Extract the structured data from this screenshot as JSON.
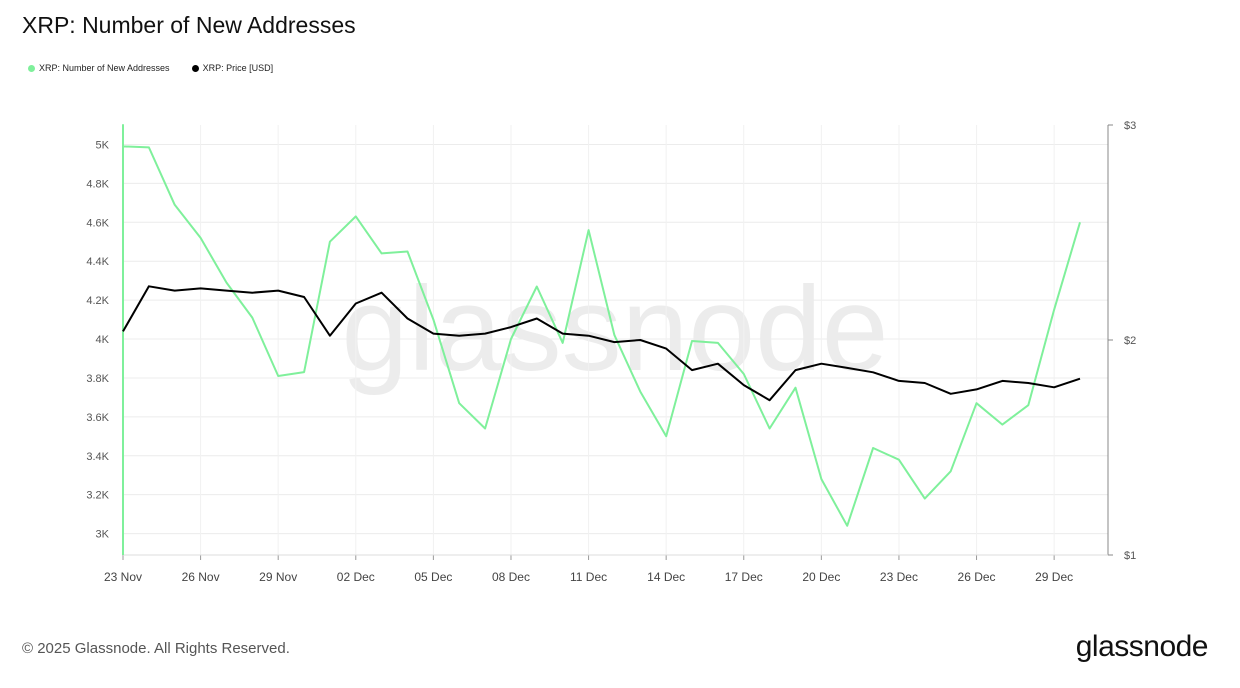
{
  "title": "XRP: Number of New Addresses",
  "legend": [
    {
      "label": "XRP: Number of New Addresses",
      "color": "#7ff09b"
    },
    {
      "label": "XRP: Price [USD]",
      "color": "#000000"
    }
  ],
  "footer": "© 2025 Glassnode. All Rights Reserved.",
  "brand": "glassnode",
  "watermark": "glassnode",
  "chart_data": {
    "type": "line",
    "x": [
      "23 Nov",
      "24 Nov",
      "25 Nov",
      "26 Nov",
      "27 Nov",
      "28 Nov",
      "29 Nov",
      "30 Nov",
      "01 Dec",
      "02 Dec",
      "03 Dec",
      "04 Dec",
      "05 Dec",
      "06 Dec",
      "07 Dec",
      "08 Dec",
      "09 Dec",
      "10 Dec",
      "11 Dec",
      "12 Dec",
      "13 Dec",
      "14 Dec",
      "15 Dec",
      "16 Dec",
      "17 Dec",
      "18 Dec",
      "19 Dec",
      "20 Dec",
      "21 Dec",
      "22 Dec",
      "23 Dec",
      "24 Dec",
      "25 Dec",
      "26 Dec",
      "27 Dec",
      "28 Dec",
      "29 Dec",
      "30 Dec"
    ],
    "xticks": [
      "23 Nov",
      "26 Nov",
      "29 Nov",
      "02 Dec",
      "05 Dec",
      "08 Dec",
      "11 Dec",
      "14 Dec",
      "17 Dec",
      "20 Dec",
      "23 Dec",
      "26 Dec",
      "29 Dec"
    ],
    "series": [
      {
        "name": "XRP: Number of New Addresses",
        "axis": "left",
        "color": "#7ff09b",
        "values": [
          4990,
          4985,
          4690,
          4520,
          4290,
          4110,
          3810,
          3830,
          4500,
          4630,
          4440,
          4450,
          4100,
          3670,
          3540,
          4000,
          4270,
          3980,
          4560,
          4020,
          3730,
          3500,
          3990,
          3980,
          3820,
          3540,
          3750,
          3280,
          3040,
          3440,
          3380,
          3180,
          3320,
          3670,
          3560,
          3660,
          4150,
          4600
        ]
      },
      {
        "name": "XRP: Price [USD]",
        "axis": "right",
        "color": "#000000",
        "values": [
          2.04,
          2.25,
          2.23,
          2.24,
          2.23,
          2.22,
          2.23,
          2.2,
          2.02,
          2.17,
          2.22,
          2.1,
          2.03,
          2.02,
          2.03,
          2.06,
          2.1,
          2.03,
          2.02,
          1.99,
          2.0,
          1.96,
          1.86,
          1.89,
          1.79,
          1.72,
          1.86,
          1.89,
          1.87,
          1.85,
          1.81,
          1.8,
          1.75,
          1.77,
          1.81,
          1.8,
          1.78,
          1.82
        ]
      }
    ],
    "y_left": {
      "ticks": [
        "3K",
        "3.2K",
        "3.4K",
        "3.6K",
        "3.8K",
        "4K",
        "4.2K",
        "4.4K",
        "4.6K",
        "4.8K",
        "5K"
      ],
      "range": [
        2890,
        5100
      ]
    },
    "y_right": {
      "ticks": [
        "$1",
        "$2",
        "$3"
      ],
      "range": [
        1,
        3
      ]
    },
    "grid": true
  }
}
